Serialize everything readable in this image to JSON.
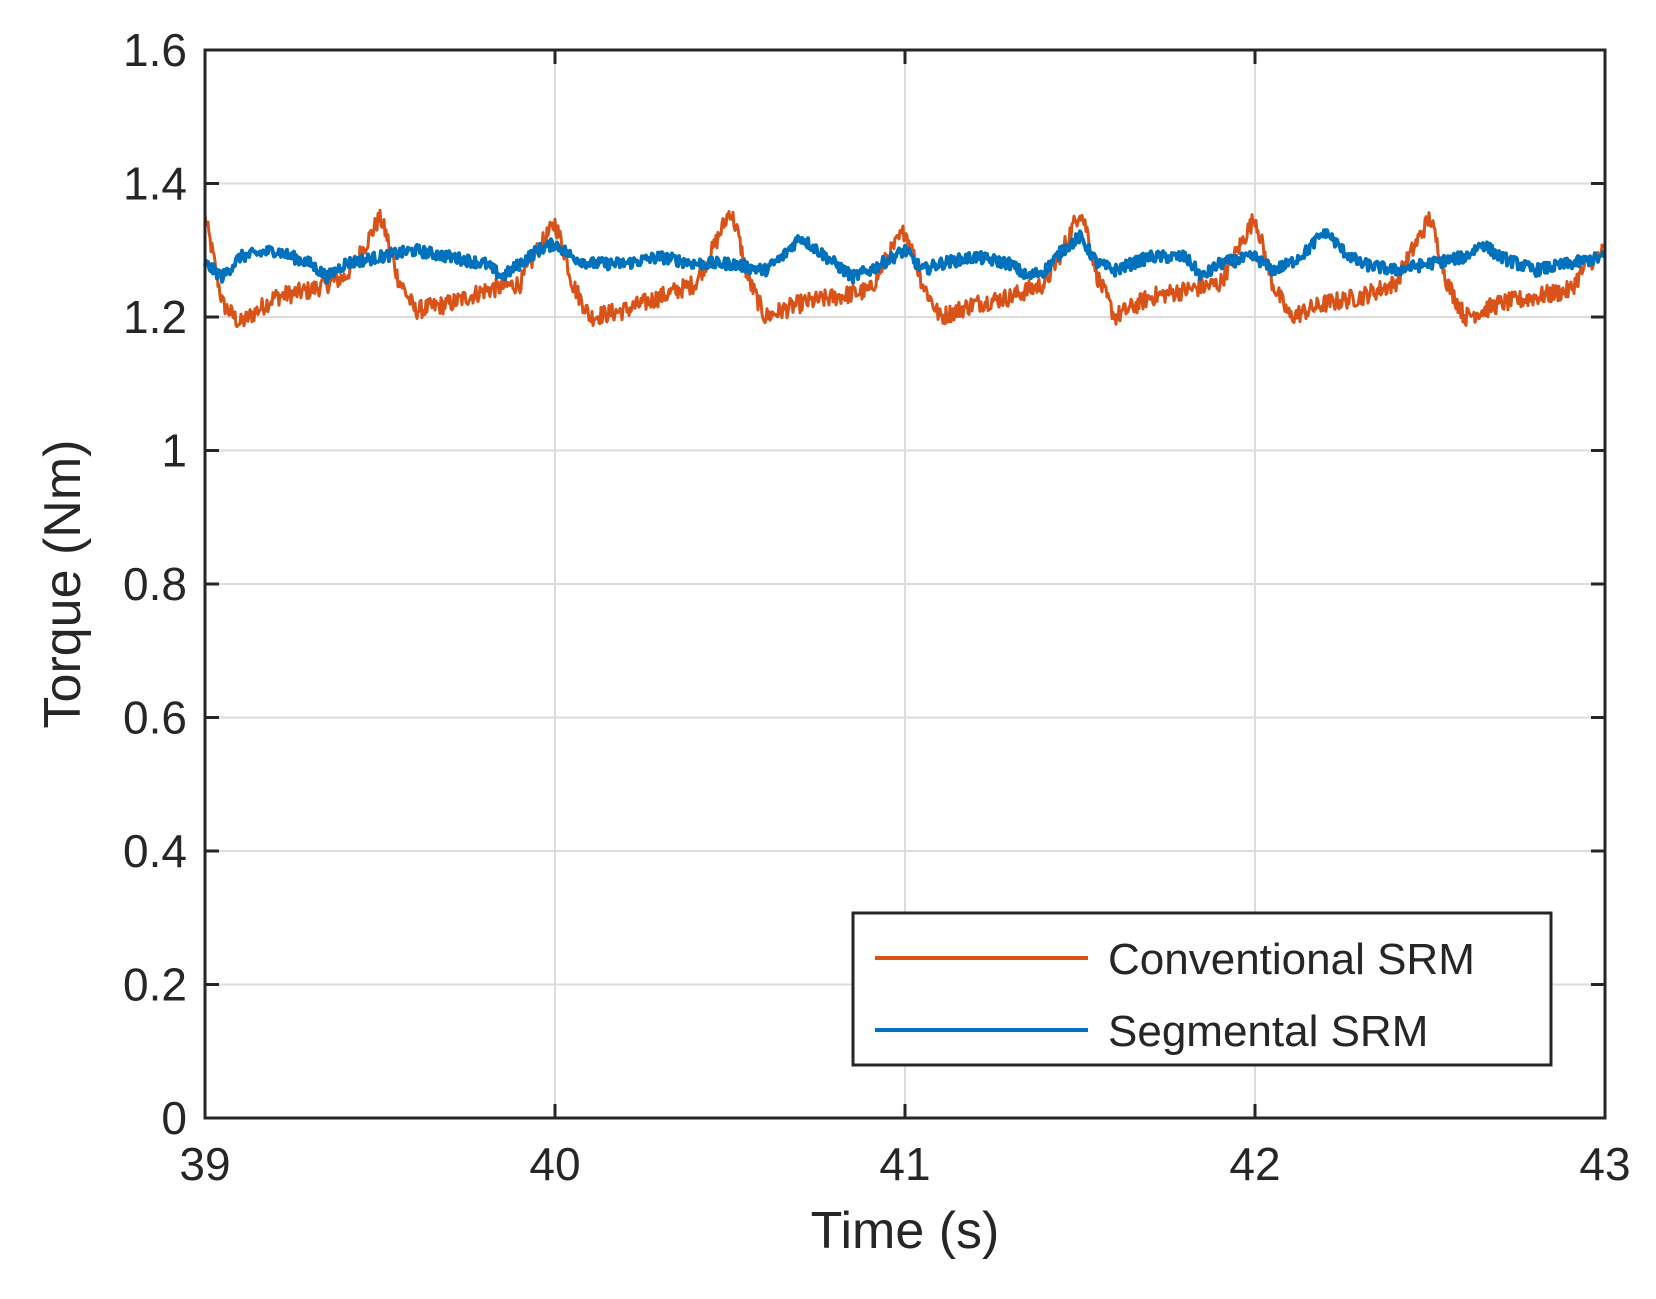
{
  "chart_data": {
    "type": "line",
    "title": "",
    "xlabel": "Time (s)",
    "ylabel": "Torque (Nm)",
    "xlim": [
      39,
      43
    ],
    "ylim": [
      0,
      1.6
    ],
    "xticks": [
      39,
      40,
      41,
      42,
      43
    ],
    "xtick_labels": [
      "39",
      "40",
      "41",
      "42",
      "43"
    ],
    "yticks": [
      0,
      0.2,
      0.4,
      0.6,
      0.8,
      1,
      1.2,
      1.4,
      1.6
    ],
    "ytick_labels": [
      "0",
      "0.2",
      "0.4",
      "0.6",
      "0.8",
      "1",
      "1.2",
      "1.4",
      "1.6"
    ],
    "grid": true,
    "legend_position": "bottom-right",
    "series": [
      {
        "name": "Conventional SRM",
        "color": "#D95319",
        "period_s": 0.5,
        "mean": 1.26,
        "min": 1.17,
        "max": 1.36,
        "x": [
          39.0,
          39.02,
          39.05,
          39.1,
          39.2,
          39.3,
          39.4,
          39.45,
          39.5,
          39.52,
          39.55,
          39.6,
          39.7,
          39.8,
          39.9,
          39.95,
          40.0,
          40.02,
          40.05,
          40.1,
          40.2,
          40.3,
          40.4,
          40.45,
          40.5,
          40.52,
          40.55,
          40.6,
          40.7,
          40.8,
          40.9,
          40.95,
          41.0,
          41.02,
          41.05,
          41.1,
          41.2,
          41.3,
          41.4,
          41.45,
          41.5,
          41.52,
          41.55,
          41.6,
          41.7,
          41.8,
          41.9,
          41.95,
          42.0,
          42.02,
          42.05,
          42.1,
          42.2,
          42.3,
          42.4,
          42.45,
          42.5,
          42.52,
          42.55,
          42.6,
          42.7,
          42.8,
          42.9,
          42.95,
          43.0
        ],
        "y": [
          1.35,
          1.3,
          1.22,
          1.19,
          1.23,
          1.24,
          1.26,
          1.3,
          1.35,
          1.32,
          1.26,
          1.21,
          1.22,
          1.24,
          1.25,
          1.3,
          1.34,
          1.31,
          1.25,
          1.2,
          1.21,
          1.23,
          1.25,
          1.3,
          1.36,
          1.33,
          1.26,
          1.2,
          1.22,
          1.23,
          1.24,
          1.29,
          1.33,
          1.3,
          1.25,
          1.2,
          1.22,
          1.23,
          1.25,
          1.3,
          1.36,
          1.33,
          1.26,
          1.2,
          1.23,
          1.24,
          1.25,
          1.3,
          1.35,
          1.31,
          1.25,
          1.2,
          1.22,
          1.23,
          1.25,
          1.3,
          1.35,
          1.31,
          1.25,
          1.2,
          1.22,
          1.23,
          1.24,
          1.28,
          1.3
        ]
      },
      {
        "name": "Segmental SRM",
        "color": "#0072BD",
        "period_s": 0.5,
        "mean": 1.28,
        "min": 1.24,
        "max": 1.33,
        "x": [
          39.0,
          39.05,
          39.1,
          39.2,
          39.3,
          39.35,
          39.4,
          39.5,
          39.6,
          39.7,
          39.8,
          39.85,
          39.9,
          39.95,
          40.0,
          40.05,
          40.1,
          40.2,
          40.3,
          40.4,
          40.5,
          40.6,
          40.65,
          40.7,
          40.75,
          40.8,
          40.85,
          40.9,
          41.0,
          41.05,
          41.1,
          41.2,
          41.3,
          41.35,
          41.4,
          41.45,
          41.5,
          41.55,
          41.6,
          41.7,
          41.8,
          41.85,
          41.9,
          42.0,
          42.05,
          42.1,
          42.15,
          42.2,
          42.25,
          42.3,
          42.4,
          42.5,
          42.6,
          42.65,
          42.7,
          42.8,
          42.9,
          43.0
        ],
        "y": [
          1.28,
          1.26,
          1.29,
          1.3,
          1.28,
          1.26,
          1.28,
          1.29,
          1.3,
          1.29,
          1.28,
          1.26,
          1.28,
          1.3,
          1.31,
          1.29,
          1.28,
          1.28,
          1.29,
          1.28,
          1.28,
          1.27,
          1.29,
          1.32,
          1.3,
          1.28,
          1.26,
          1.27,
          1.3,
          1.27,
          1.28,
          1.29,
          1.28,
          1.26,
          1.27,
          1.3,
          1.32,
          1.28,
          1.27,
          1.29,
          1.29,
          1.26,
          1.28,
          1.29,
          1.27,
          1.28,
          1.3,
          1.33,
          1.3,
          1.28,
          1.27,
          1.28,
          1.29,
          1.31,
          1.29,
          1.27,
          1.28,
          1.29
        ]
      }
    ]
  }
}
